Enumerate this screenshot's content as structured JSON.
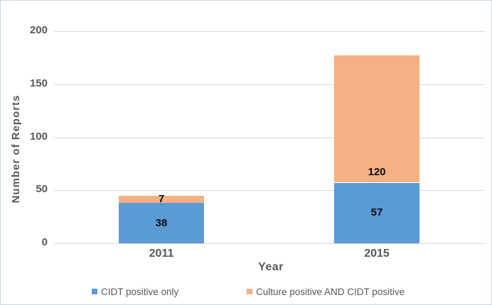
{
  "chart_data": {
    "type": "bar",
    "stacked": true,
    "categories": [
      "2011",
      "2015"
    ],
    "series": [
      {
        "name": "CIDT positive only",
        "color": "#5B9BD5",
        "values": [
          38,
          57
        ],
        "label_position": "center"
      },
      {
        "name": "Culture positive AND CIDT positive",
        "color": "#F4B183",
        "values": [
          7,
          120
        ],
        "label_position": "inside_base"
      }
    ],
    "xlabel": "Year",
    "ylabel": "Number of Reports",
    "yticks": [
      0,
      50,
      100,
      150,
      200
    ],
    "ylim": [
      0,
      200
    ],
    "grid": true,
    "legend_position": "bottom",
    "data_labels_shown": [
      [
        "38",
        "7"
      ],
      [
        "57",
        "120"
      ]
    ]
  },
  "colors": {
    "series_blue": "#5B9BD5",
    "series_orange": "#F4B183",
    "axis_text": "#595959",
    "data_label_text": "#0d0d0d",
    "gridline": "#d9d9d9",
    "frame_border": "#ccd5de"
  }
}
